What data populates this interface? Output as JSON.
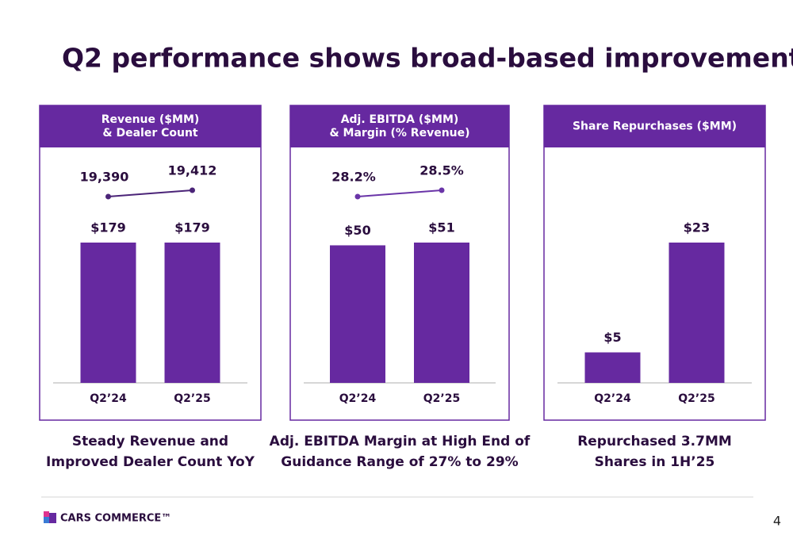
{
  "title": "Q2 performance shows broad-based improvement",
  "chart_data": [
    {
      "type": "bar",
      "title": [
        "Revenue ($MM)",
        "& Dealer Count"
      ],
      "categories": [
        "Q2’24",
        "Q2’25"
      ],
      "values": [
        179,
        179
      ],
      "value_labels": [
        "$179",
        "$179"
      ],
      "color": "#6629a0",
      "line": {
        "values": [
          19390,
          19412
        ],
        "value_labels": [
          "19,390",
          "19,412"
        ],
        "color": "#4b2478"
      },
      "caption": [
        "Steady Revenue and",
        "Improved Dealer Count YoY"
      ]
    },
    {
      "type": "bar",
      "title": [
        "Adj. EBITDA ($MM)",
        "& Margin (% Revenue)"
      ],
      "categories": [
        "Q2’24",
        "Q2’25"
      ],
      "values": [
        50,
        51
      ],
      "value_labels": [
        "$50",
        "$51"
      ],
      "color": "#6629a0",
      "line": {
        "values": [
          28.2,
          28.5
        ],
        "value_labels": [
          "28.2%",
          "28.5%"
        ],
        "color": "#6a35a8"
      },
      "caption": [
        "Adj. EBITDA Margin at High End of",
        "Guidance Range of 27% to 29%"
      ]
    },
    {
      "type": "bar",
      "title": [
        "Share Repurchases ($MM)"
      ],
      "categories": [
        "Q2’24",
        "Q2’25"
      ],
      "values": [
        5,
        23
      ],
      "value_labels": [
        "$5",
        "$23"
      ],
      "color": "#6629a0",
      "caption": [
        "Repurchased 3.7MM",
        "Shares in 1H’25"
      ]
    }
  ],
  "footer": {
    "logo": "CARS COMMERCE™",
    "page": "4"
  }
}
